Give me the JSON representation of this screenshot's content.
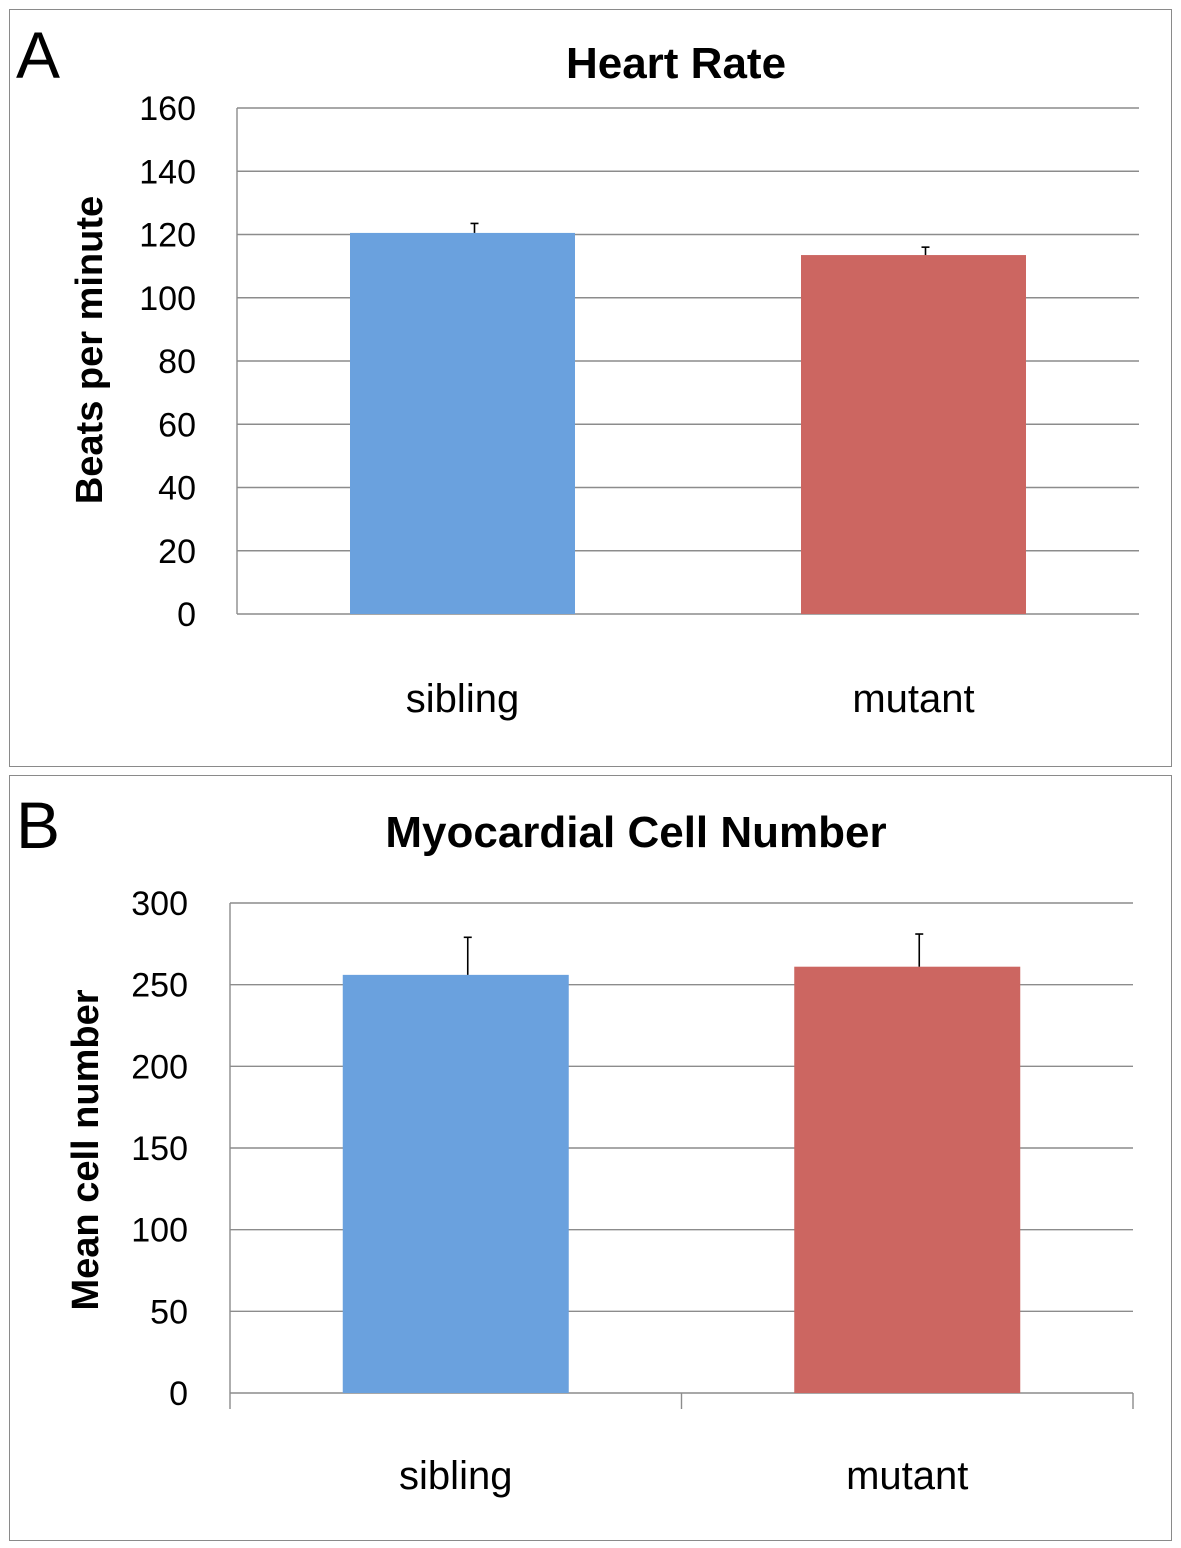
{
  "figure": {
    "panels": [
      "A",
      "B"
    ]
  },
  "chart_data": [
    {
      "type": "bar",
      "panel_label": "A",
      "title": "Heart Rate",
      "ylabel": "Beats per minute",
      "xlabel": "",
      "categories": [
        "sibling",
        "mutant"
      ],
      "values": [
        120.5,
        113.5
      ],
      "errors": [
        3.0,
        2.5
      ],
      "colors": [
        "#6aa1de",
        "#cc6661"
      ],
      "ylim": [
        0,
        160
      ],
      "yticks": [
        0,
        20,
        40,
        60,
        80,
        100,
        120,
        140,
        160
      ],
      "grid": true,
      "legend": "none"
    },
    {
      "type": "bar",
      "panel_label": "B",
      "title": "Myocardial Cell Number",
      "ylabel": "Mean cell number",
      "xlabel": "",
      "categories": [
        "sibling",
        "mutant"
      ],
      "values": [
        256,
        261
      ],
      "errors": [
        23,
        20
      ],
      "colors": [
        "#6aa1de",
        "#cc6661"
      ],
      "ylim": [
        0,
        300
      ],
      "yticks": [
        0,
        50,
        100,
        150,
        200,
        250,
        300
      ],
      "grid": true,
      "legend": "none"
    }
  ]
}
